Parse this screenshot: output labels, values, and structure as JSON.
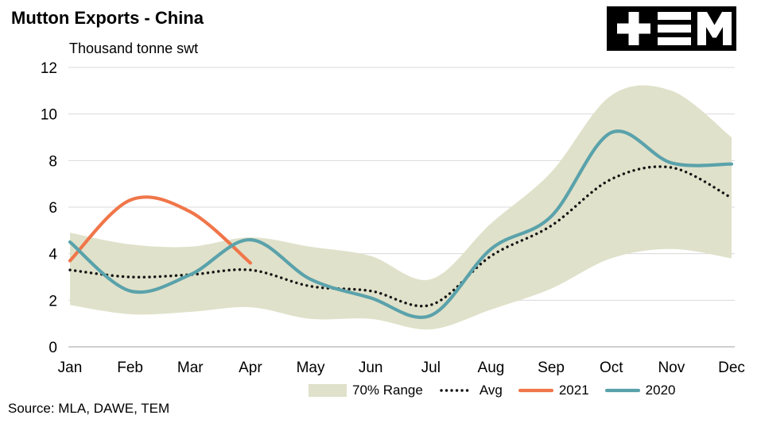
{
  "title": "Mutton Exports - China",
  "subtitle": "Thousand tonne swt",
  "source": "Source: MLA, DAWE, TEM",
  "colors": {
    "band": "#e0e1ca",
    "avg": "#141414",
    "y2021": "#f0764a",
    "y2020": "#5aa2ab",
    "grid": "#d9d9d9",
    "axis": "#bfbfbf",
    "text": "#000000",
    "logo_bg": "#000000",
    "logo_fg": "#ffffff"
  },
  "legend": [
    {
      "label": "70% Range"
    },
    {
      "label": "Avg"
    },
    {
      "label": "2021"
    },
    {
      "label": "2020"
    }
  ],
  "chart_data": {
    "type": "line",
    "title": "Mutton Exports - China",
    "ylabel": "Thousand tonne swt",
    "ylim": [
      0,
      12
    ],
    "yticks": [
      0,
      2,
      4,
      6,
      8,
      10,
      12
    ],
    "grid": "horizontal",
    "legend_position": "bottom",
    "categories": [
      "Jan",
      "Feb",
      "Mar",
      "Apr",
      "May",
      "Jun",
      "Jul",
      "Aug",
      "Sep",
      "Oct",
      "Nov",
      "Dec"
    ],
    "band": {
      "name": "70% Range",
      "color": "#e0e1ca",
      "low": [
        1.8,
        1.4,
        1.5,
        1.7,
        1.2,
        1.2,
        0.75,
        1.6,
        2.5,
        3.8,
        4.2,
        3.8
      ],
      "high": [
        4.9,
        4.4,
        4.3,
        4.7,
        4.3,
        3.9,
        2.9,
        5.3,
        7.5,
        10.8,
        11.0,
        9.0
      ]
    },
    "series": [
      {
        "name": "Avg",
        "style": "dotted",
        "color": "#141414",
        "values": [
          3.3,
          3.0,
          3.1,
          3.3,
          2.6,
          2.4,
          1.8,
          3.9,
          5.2,
          7.2,
          7.7,
          6.4
        ]
      },
      {
        "name": "2021",
        "style": "solid",
        "color": "#f0764a",
        "values": [
          3.7,
          6.3,
          5.8,
          3.6
        ]
      },
      {
        "name": "2020",
        "style": "solid",
        "color": "#5aa2ab",
        "values": [
          4.5,
          2.4,
          3.1,
          4.6,
          2.9,
          2.1,
          1.35,
          4.2,
          5.6,
          9.2,
          7.9,
          7.85
        ]
      }
    ]
  }
}
